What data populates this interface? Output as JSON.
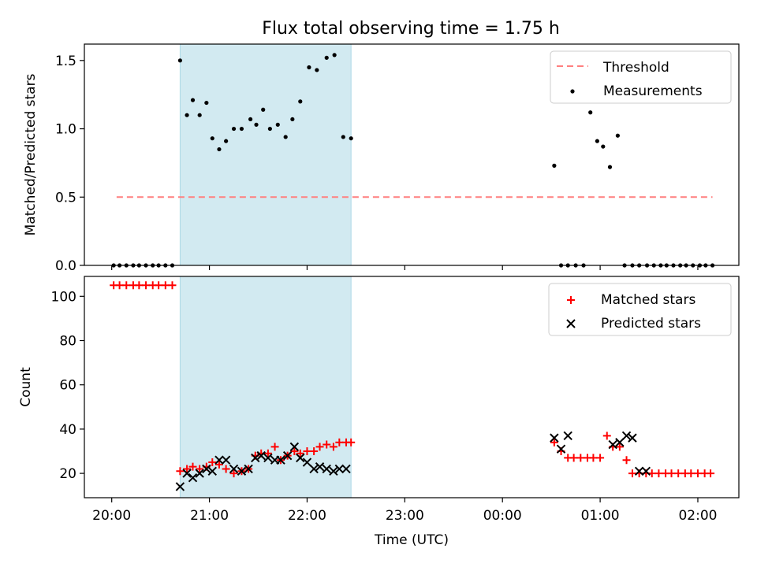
{
  "title": "Flux total observing time = 1.75 h",
  "colors": {
    "threshold": "#ff7f7f",
    "measurement": "#000000",
    "matched": "#ff0000",
    "predicted": "#000000",
    "span": "#add8e6"
  },
  "chart_data": [
    {
      "type": "scatter",
      "ylabel": "Matched/Predicted stars",
      "ylim": [
        0,
        1.62
      ],
      "yticks": [
        0,
        0.5,
        1.0,
        1.5
      ],
      "ytick_labels": [
        "0.0",
        "0.5",
        "1.0",
        "1.5"
      ],
      "xlim": [
        -0.28,
        6.42
      ],
      "grid": false,
      "legend": {
        "position": "top-right",
        "entries": [
          "Threshold",
          "Measurements"
        ]
      },
      "threshold": {
        "name": "Threshold",
        "value": 0.5,
        "x_range": [
          0.05,
          6.15
        ]
      },
      "observing_span": [
        0.7,
        2.45
      ],
      "series": [
        {
          "name": "Measurements",
          "x": [
            0.02,
            0.08,
            0.15,
            0.22,
            0.28,
            0.35,
            0.42,
            0.48,
            0.55,
            0.62,
            0.7,
            0.77,
            0.83,
            0.9,
            0.97,
            1.03,
            1.1,
            1.17,
            1.25,
            1.33,
            1.42,
            1.48,
            1.55,
            1.62,
            1.7,
            1.78,
            1.85,
            1.93,
            2.02,
            2.1,
            2.2,
            2.28,
            2.37,
            2.45,
            4.53,
            4.6,
            4.67,
            4.75,
            4.83,
            4.9,
            4.97,
            5.03,
            5.1,
            5.18,
            5.25,
            5.33,
            5.4,
            5.48,
            5.55,
            5.62,
            5.68,
            5.75,
            5.82,
            5.88,
            5.95,
            6.02,
            6.08,
            6.15
          ],
          "y": [
            0,
            0,
            0,
            0,
            0,
            0,
            0,
            0,
            0,
            0,
            1.5,
            1.1,
            1.21,
            1.1,
            1.19,
            0.93,
            0.85,
            0.91,
            1.0,
            1.0,
            1.07,
            1.03,
            1.14,
            1.0,
            1.03,
            0.94,
            1.07,
            1.2,
            1.45,
            1.43,
            1.52,
            1.54,
            0.94,
            0.93,
            0.73,
            0,
            0,
            0,
            0,
            1.12,
            0.91,
            0.87,
            0.72,
            0.95,
            0,
            0,
            0,
            0,
            0,
            0,
            0,
            0,
            0,
            0,
            0,
            0,
            0,
            0
          ]
        }
      ]
    },
    {
      "type": "scatter",
      "xlabel": "Time (UTC)",
      "ylabel": "Count",
      "ylim": [
        9,
        109
      ],
      "yticks": [
        20,
        40,
        60,
        80,
        100
      ],
      "ytick_labels": [
        "20",
        "40",
        "60",
        "80",
        "100"
      ],
      "xlim": [
        -0.28,
        6.42
      ],
      "xticks": [
        0,
        1,
        2,
        3,
        4,
        5,
        6
      ],
      "xtick_labels": [
        "20:00",
        "21:00",
        "22:00",
        "23:00",
        "00:00",
        "01:00",
        "02:00"
      ],
      "grid": false,
      "legend": {
        "position": "top-right",
        "entries": [
          "Matched stars",
          "Predicted stars"
        ]
      },
      "observing_span": [
        0.7,
        2.45
      ],
      "series": [
        {
          "name": "Matched stars",
          "x": [
            0.02,
            0.08,
            0.15,
            0.22,
            0.28,
            0.35,
            0.42,
            0.48,
            0.55,
            0.62,
            0.7,
            0.77,
            0.83,
            0.9,
            0.97,
            1.03,
            1.1,
            1.17,
            1.25,
            1.33,
            1.4,
            1.47,
            1.53,
            1.6,
            1.67,
            1.73,
            1.8,
            1.87,
            1.93,
            2.0,
            2.07,
            2.13,
            2.2,
            2.27,
            2.33,
            2.4,
            2.45,
            4.53,
            4.6,
            4.67,
            4.73,
            4.8,
            4.87,
            4.93,
            5.0,
            5.07,
            5.13,
            5.2,
            5.27,
            5.33,
            5.4,
            5.47,
            5.53,
            5.6,
            5.67,
            5.73,
            5.8,
            5.87,
            5.93,
            6.0,
            6.07,
            6.13
          ],
          "y": [
            105,
            105,
            105,
            105,
            105,
            105,
            105,
            105,
            105,
            105,
            21,
            22,
            23,
            22,
            23,
            25,
            24,
            22,
            20,
            21,
            22,
            28,
            29,
            29,
            32,
            26,
            28,
            30,
            29,
            30,
            30,
            32,
            33,
            32,
            34,
            34,
            34,
            34,
            30,
            27,
            27,
            27,
            27,
            27,
            27,
            37,
            32,
            32,
            26,
            20,
            20,
            20,
            20,
            20,
            20,
            20,
            20,
            20,
            20,
            20,
            20,
            20
          ]
        },
        {
          "name": "Predicted stars",
          "x": [
            0.7,
            0.77,
            0.83,
            0.9,
            0.97,
            1.03,
            1.1,
            1.17,
            1.25,
            1.33,
            1.4,
            1.47,
            1.53,
            1.6,
            1.67,
            1.73,
            1.8,
            1.87,
            1.93,
            2.0,
            2.07,
            2.13,
            2.2,
            2.27,
            2.33,
            2.4,
            4.53,
            4.6,
            4.67,
            5.13,
            5.2,
            5.27,
            5.33,
            5.4,
            5.47
          ],
          "y": [
            14,
            20,
            18,
            20,
            22,
            21,
            26,
            26,
            22,
            21,
            22,
            27,
            28,
            27,
            26,
            26,
            28,
            32,
            27,
            25,
            22,
            23,
            22,
            21,
            22,
            22,
            36,
            31,
            37,
            33,
            34,
            37,
            36,
            21,
            21
          ]
        }
      ]
    }
  ]
}
